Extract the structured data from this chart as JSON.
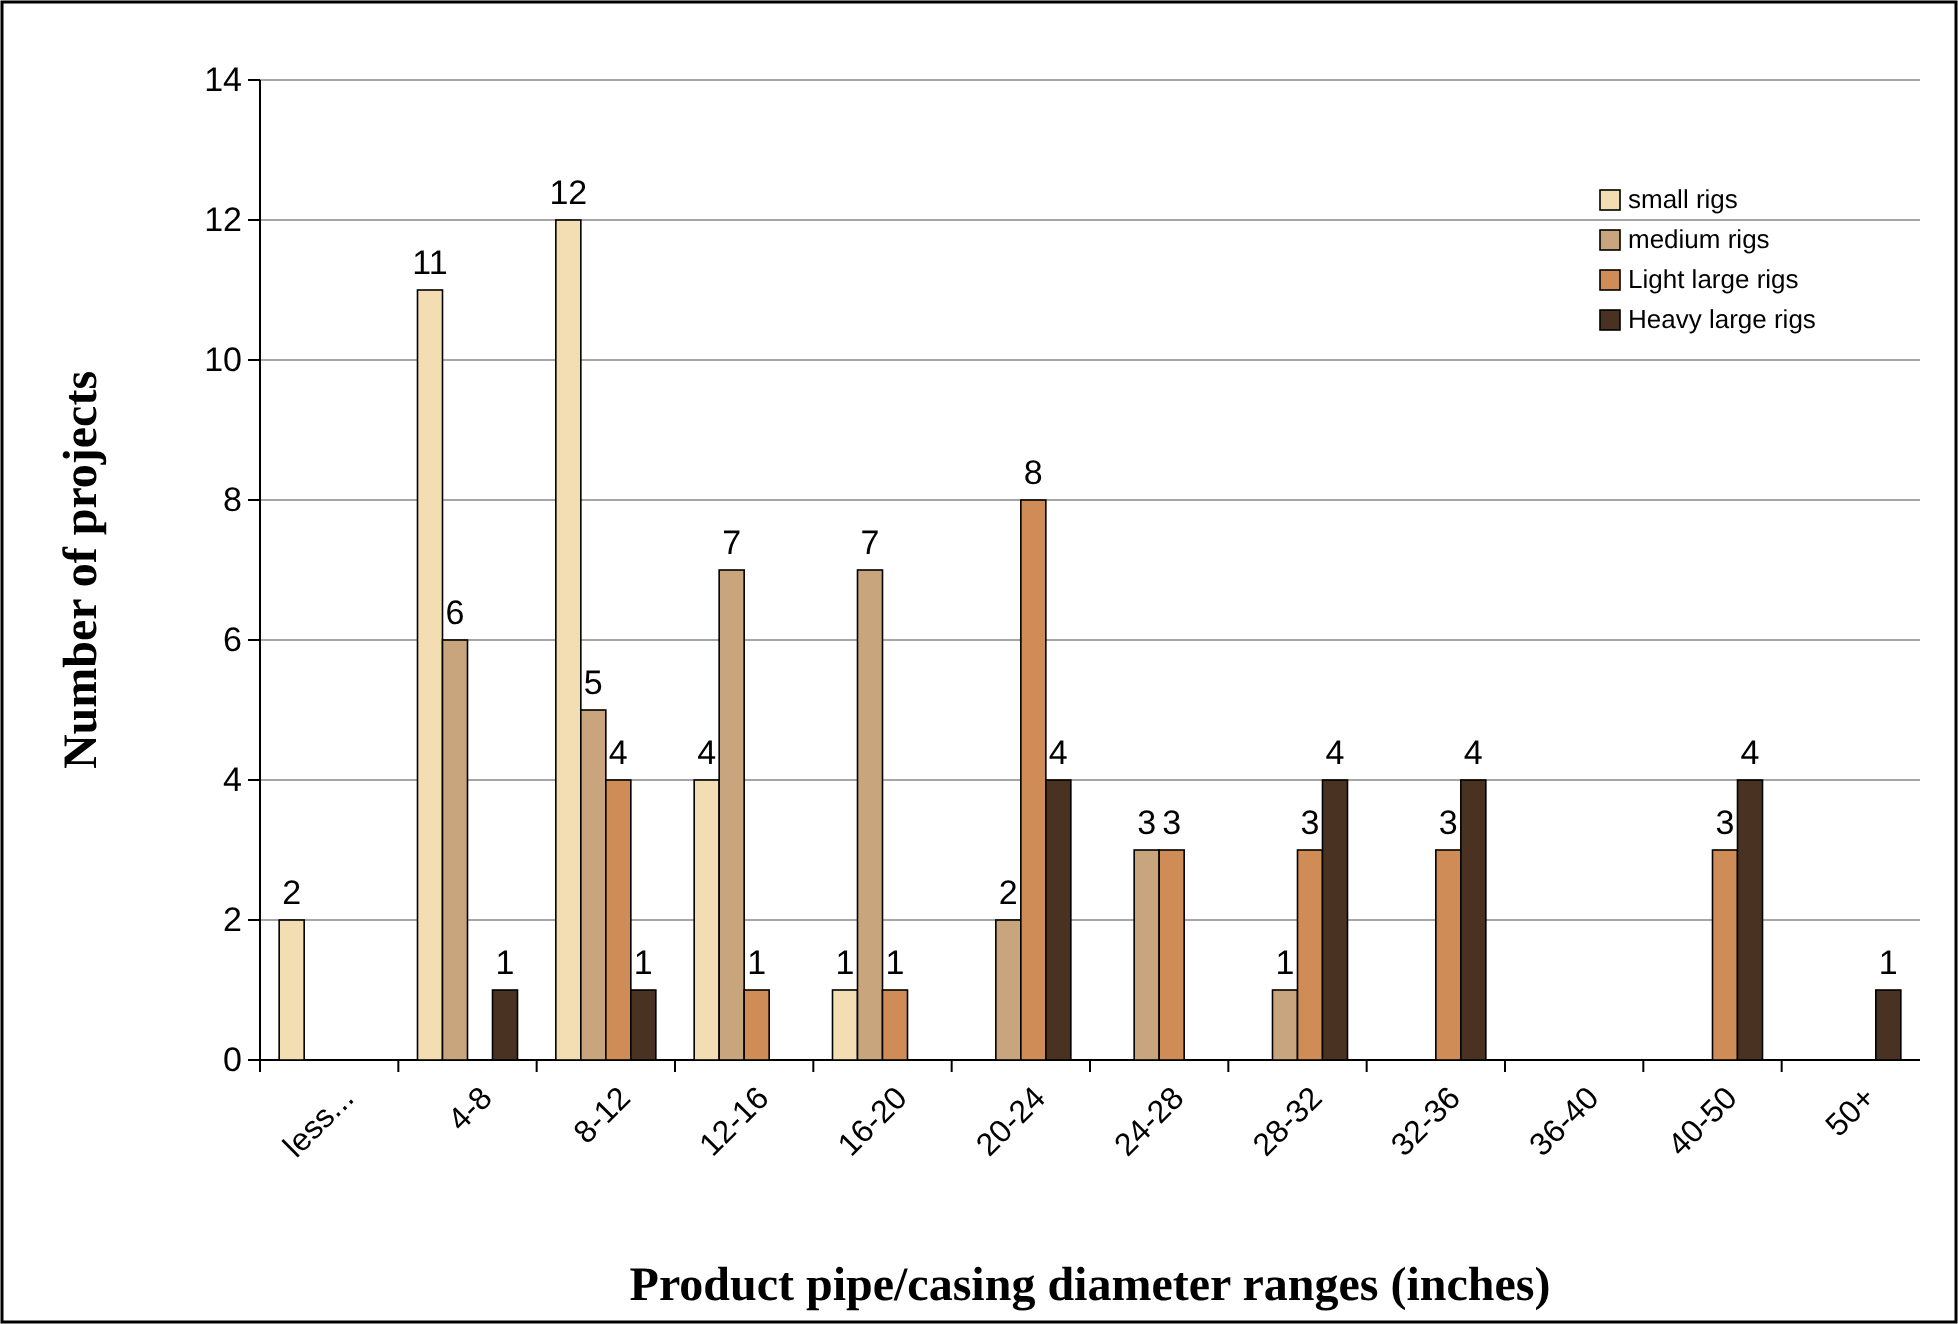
{
  "chart_data": {
    "type": "bar",
    "xlabel": "Product pipe/casing diameter ranges (inches)",
    "ylabel": "Number of projects",
    "categories": [
      "less...",
      "4-8",
      "8-12",
      "12-16",
      "16-20",
      "20-24",
      "24-28",
      "28-32",
      "32-36",
      "36-40",
      "40-50",
      "50+"
    ],
    "series": [
      {
        "name": "small rigs",
        "color": "#f3deb4",
        "values": [
          2,
          11,
          12,
          4,
          1,
          null,
          null,
          null,
          null,
          null,
          null,
          null
        ]
      },
      {
        "name": "medium rigs",
        "color": "#c8a57c",
        "values": [
          null,
          6,
          5,
          7,
          7,
          2,
          3,
          1,
          null,
          null,
          null,
          null
        ]
      },
      {
        "name": "Light large rigs",
        "color": "#cf8c57",
        "values": [
          null,
          null,
          4,
          1,
          1,
          8,
          3,
          3,
          3,
          null,
          3,
          null
        ]
      },
      {
        "name": "Heavy large rigs",
        "color": "#4a3222",
        "values": [
          null,
          1,
          1,
          null,
          null,
          4,
          null,
          4,
          4,
          null,
          4,
          1
        ]
      }
    ],
    "ylim": [
      0,
      14
    ],
    "yticks": [
      0,
      2,
      4,
      6,
      8,
      10,
      12,
      14
    ],
    "grid": "y",
    "legend": "top right",
    "data_labels": true
  }
}
